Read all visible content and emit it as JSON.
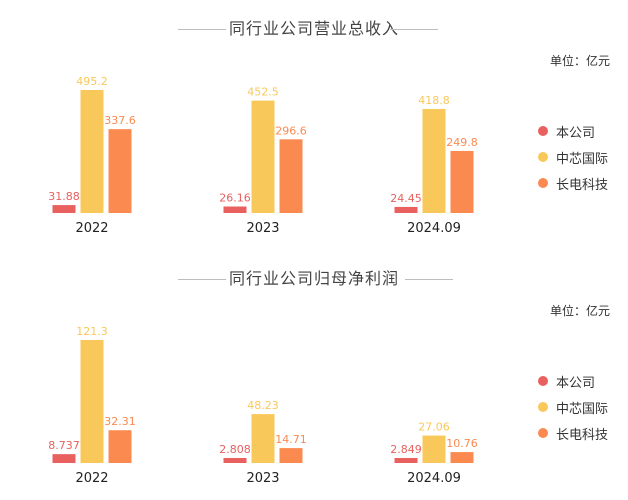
{
  "colors": {
    "company": "#e8615f",
    "smic": "#f9c85a",
    "jcet": "#fb8a50"
  },
  "legend": [
    {
      "label": "本公司",
      "color": "#e8615f"
    },
    {
      "label": "中芯国际",
      "color": "#f9c85a"
    },
    {
      "label": "长电科技",
      "color": "#fb8a50"
    }
  ],
  "unit_label": "单位：亿元",
  "chart_data": [
    {
      "type": "bar",
      "title": "同行业公司营业总收入",
      "categories": [
        "2022",
        "2023",
        "2024.09"
      ],
      "series": [
        {
          "name": "本公司",
          "values": [
            31.88,
            26.16,
            24.45
          ],
          "labels": [
            "31.88",
            "26.16",
            "24.45"
          ]
        },
        {
          "name": "中芯国际",
          "values": [
            495.2,
            452.5,
            418.8
          ],
          "labels": [
            "495.2",
            "452.5",
            "418.8"
          ]
        },
        {
          "name": "长电科技",
          "values": [
            337.6,
            296.6,
            249.8
          ],
          "labels": [
            "337.6",
            "296.6",
            "249.8"
          ]
        }
      ],
      "ylim": [
        0,
        495.2
      ],
      "grid": false,
      "legend_position": "right"
    },
    {
      "type": "bar",
      "title": "同行业公司归母净利润",
      "categories": [
        "2022",
        "2023",
        "2024.09"
      ],
      "series": [
        {
          "name": "本公司",
          "values": [
            8.737,
            2.808,
            2.849
          ],
          "labels": [
            "8.737",
            "2.808",
            "2.849"
          ]
        },
        {
          "name": "中芯国际",
          "values": [
            121.3,
            48.23,
            27.06
          ],
          "labels": [
            "121.3",
            "48.23",
            "27.06"
          ]
        },
        {
          "name": "长电科技",
          "values": [
            32.31,
            14.71,
            10.76
          ],
          "labels": [
            "32.31",
            "14.71",
            "10.76"
          ]
        }
      ],
      "ylim": [
        0,
        121.3
      ],
      "grid": false,
      "legend_position": "right"
    }
  ]
}
